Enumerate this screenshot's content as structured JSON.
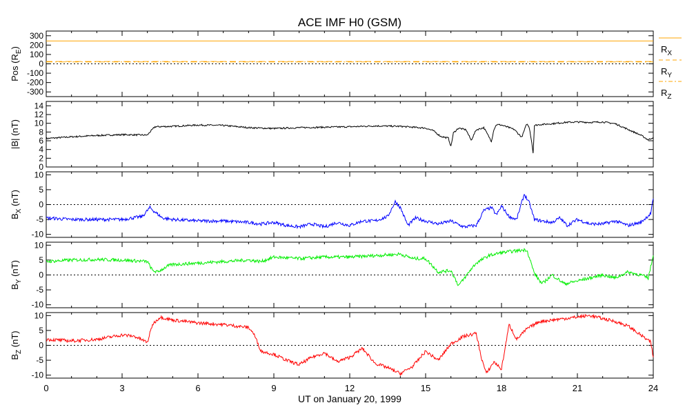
{
  "title": "ACE IMF H0 (GSM)",
  "x_axis_label": "UT on January 20, 1999",
  "chart_data": [
    {
      "type": "line",
      "panel": "position",
      "ylabel": "Pos (RE)",
      "ylim": [
        -350,
        350
      ],
      "yticks": [
        -300,
        -200,
        -100,
        0,
        100,
        200,
        300
      ],
      "ytick_labels": [
        "-300",
        "-200",
        "-100",
        "0",
        "100",
        "200",
        "300"
      ],
      "zero_line": true,
      "x": [
        0,
        24
      ],
      "series": [
        {
          "name": "RX",
          "color": "#ffa500",
          "dash": "solid",
          "values": [
            244,
            244
          ]
        },
        {
          "name": "RY",
          "color": "#ffa500",
          "dash": "dashed",
          "values": [
            25,
            25
          ]
        },
        {
          "name": "RZ",
          "color": "#ffa500",
          "dash": "dashdot",
          "values": [
            20,
            20
          ]
        }
      ],
      "legend": [
        "RX",
        "RY",
        "RZ"
      ],
      "legend_position": "right"
    },
    {
      "type": "line",
      "panel": "btotal",
      "ylabel": "|B| (nT)",
      "ylim": [
        0,
        15
      ],
      "yticks": [
        0,
        2,
        4,
        6,
        8,
        10,
        12,
        14
      ],
      "ytick_labels": [
        "0",
        "2",
        "4",
        "6",
        "8",
        "10",
        "12",
        "14"
      ],
      "zero_line": false,
      "series": [
        {
          "name": "|B|",
          "color": "#000000",
          "x": [
            0,
            0.5,
            1,
            2,
            3,
            4,
            4.1,
            4.3,
            5,
            6,
            7,
            8,
            9,
            10,
            11,
            12,
            13,
            14,
            15,
            15.3,
            15.6,
            15.9,
            16,
            16.1,
            16.3,
            16.6,
            16.8,
            17,
            17.3,
            17.6,
            17.7,
            17.8,
            18,
            18.5,
            18.8,
            19,
            19.1,
            19.2,
            19.25,
            19.3,
            19.5,
            20,
            20.5,
            21,
            21.5,
            22,
            22.5,
            23,
            23.5,
            23.8,
            24
          ],
          "values": [
            6.5,
            6.7,
            6.9,
            7.2,
            7.4,
            7.3,
            8.0,
            9.2,
            9.3,
            9.6,
            9.5,
            9.0,
            8.8,
            9.0,
            9.1,
            9.2,
            9.4,
            9.3,
            8.9,
            8.3,
            7.0,
            6.6,
            4.7,
            7.8,
            8.9,
            8.5,
            6.1,
            8.5,
            9.0,
            5.9,
            8.6,
            9.7,
            9.6,
            8.6,
            6.8,
            9.9,
            9.0,
            5.5,
            3.2,
            9.5,
            9.7,
            9.9,
            10.2,
            10.3,
            10.2,
            10.3,
            9.9,
            8.6,
            7.3,
            6.2,
            6.8
          ]
        }
      ]
    },
    {
      "type": "line",
      "panel": "bx",
      "ylabel": "BX (nT)",
      "ylim": [
        -11,
        11
      ],
      "yticks": [
        -10,
        -5,
        0,
        5,
        10
      ],
      "ytick_labels": [
        "-10",
        "-5",
        "0",
        "5",
        "10"
      ],
      "zero_line": true,
      "series": [
        {
          "name": "BX",
          "color": "#0000ff",
          "x": [
            0,
            1,
            2,
            3,
            3.8,
            4.1,
            4.3,
            4.6,
            5,
            6,
            7,
            8,
            8.5,
            9,
            9.5,
            10,
            10.5,
            11,
            11.5,
            12,
            12.5,
            13,
            13.5,
            13.8,
            14,
            14.3,
            14.6,
            15,
            15.5,
            16,
            16.5,
            17,
            17.3,
            17.6,
            17.8,
            18,
            18.3,
            18.6,
            18.9,
            19.1,
            19.3,
            19.6,
            20,
            20.3,
            20.6,
            21,
            21.5,
            22,
            22.5,
            23,
            23.5,
            23.9,
            24
          ],
          "values": [
            -4.5,
            -5.0,
            -5.0,
            -5.0,
            -4.0,
            -1.0,
            -2.5,
            -4.5,
            -5.0,
            -5.5,
            -5.5,
            -6.0,
            -6.5,
            -6.0,
            -7.0,
            -7.5,
            -6.5,
            -7.5,
            -6.0,
            -7.0,
            -5.5,
            -5.5,
            -4.0,
            1.0,
            -1.0,
            -7.0,
            -4.5,
            -5.5,
            -6.5,
            -5.5,
            -7.5,
            -7.0,
            -2.0,
            -1.0,
            -3.5,
            -0.5,
            -4.0,
            -5.0,
            3.5,
            0.5,
            -5.0,
            -5.5,
            -6.0,
            -4.5,
            -7.0,
            -5.0,
            -6.5,
            -6.5,
            -5.5,
            -7.0,
            -6.0,
            -3.0,
            2.0
          ]
        }
      ]
    },
    {
      "type": "line",
      "panel": "by",
      "ylabel": "BY (nT)",
      "ylim": [
        -11,
        11
      ],
      "yticks": [
        -10,
        -5,
        0,
        5,
        10
      ],
      "ytick_labels": [
        "-10",
        "-5",
        "0",
        "5",
        "10"
      ],
      "zero_line": true,
      "series": [
        {
          "name": "BY",
          "color": "#00ee00",
          "x": [
            0,
            1,
            2,
            3,
            4,
            4.2,
            4.4,
            4.8,
            5,
            6,
            7,
            8,
            8.5,
            9,
            10,
            11,
            12,
            13,
            14,
            14.5,
            15,
            15.5,
            16,
            16.3,
            16.5,
            16.8,
            17,
            17.5,
            18,
            18.5,
            19,
            19.3,
            19.6,
            20,
            20.5,
            21,
            21.5,
            22,
            22.5,
            23,
            23.5,
            23.8,
            24
          ],
          "values": [
            4.5,
            5.0,
            5.2,
            5.0,
            4.5,
            1.5,
            1.0,
            3.0,
            3.5,
            4.0,
            4.5,
            5.0,
            4.5,
            6.0,
            5.5,
            6.0,
            6.0,
            6.5,
            7.0,
            5.5,
            5.5,
            1.0,
            1.5,
            -3.5,
            -1.5,
            2.0,
            4.0,
            6.5,
            7.5,
            8.0,
            8.5,
            0.5,
            -3.0,
            0.0,
            -3.0,
            -2.0,
            -1.0,
            0.0,
            -1.0,
            1.0,
            0.0,
            -1.0,
            6.5
          ]
        }
      ]
    },
    {
      "type": "line",
      "panel": "bz",
      "ylabel": "BZ (nT)",
      "ylim": [
        -11,
        11
      ],
      "yticks": [
        -10,
        -5,
        0,
        5,
        10
      ],
      "ytick_labels": [
        "-10",
        "-5",
        "0",
        "5",
        "10"
      ],
      "zero_line": true,
      "series": [
        {
          "name": "BZ",
          "color": "#ff0000",
          "x": [
            0,
            1,
            2,
            3,
            3.5,
            4,
            4.2,
            4.5,
            5,
            6,
            7,
            8,
            8.2,
            8.5,
            9,
            9.5,
            10,
            10.5,
            11,
            11.5,
            12,
            12.5,
            13,
            13.5,
            14,
            14.5,
            15,
            15.5,
            16,
            16.5,
            17,
            17.2,
            17.4,
            17.7,
            18,
            18.3,
            18.6,
            19,
            19.5,
            20,
            20.5,
            21,
            21.5,
            22,
            22.5,
            23,
            23.5,
            23.9,
            24
          ],
          "values": [
            2.0,
            1.5,
            2.0,
            3.5,
            3.0,
            1.0,
            7.0,
            9.5,
            8.5,
            7.5,
            7.0,
            6.0,
            4.0,
            -2.0,
            -3.0,
            -5.0,
            -6.5,
            -4.0,
            -2.5,
            -5.5,
            -4.0,
            -1.0,
            -6.0,
            -7.5,
            -9.5,
            -7.0,
            -2.0,
            -5.0,
            0.5,
            3.0,
            4.0,
            -4.0,
            -9.5,
            -5.5,
            -8.0,
            7.0,
            2.0,
            5.5,
            8.0,
            8.5,
            9.0,
            9.5,
            10.0,
            9.0,
            8.0,
            6.5,
            3.5,
            1.0,
            -4.0
          ]
        }
      ]
    }
  ],
  "x_axis": {
    "xlim": [
      0,
      24
    ],
    "ticks": [
      0,
      3,
      6,
      9,
      12,
      15,
      18,
      21,
      24
    ],
    "tick_labels": [
      "0",
      "3",
      "6",
      "9",
      "12",
      "15",
      "18",
      "21",
      "24"
    ]
  },
  "colors": {
    "position": "#ffa500",
    "btotal": "#000000",
    "bx": "#0000ff",
    "by": "#00ee00",
    "bz": "#ff0000"
  }
}
